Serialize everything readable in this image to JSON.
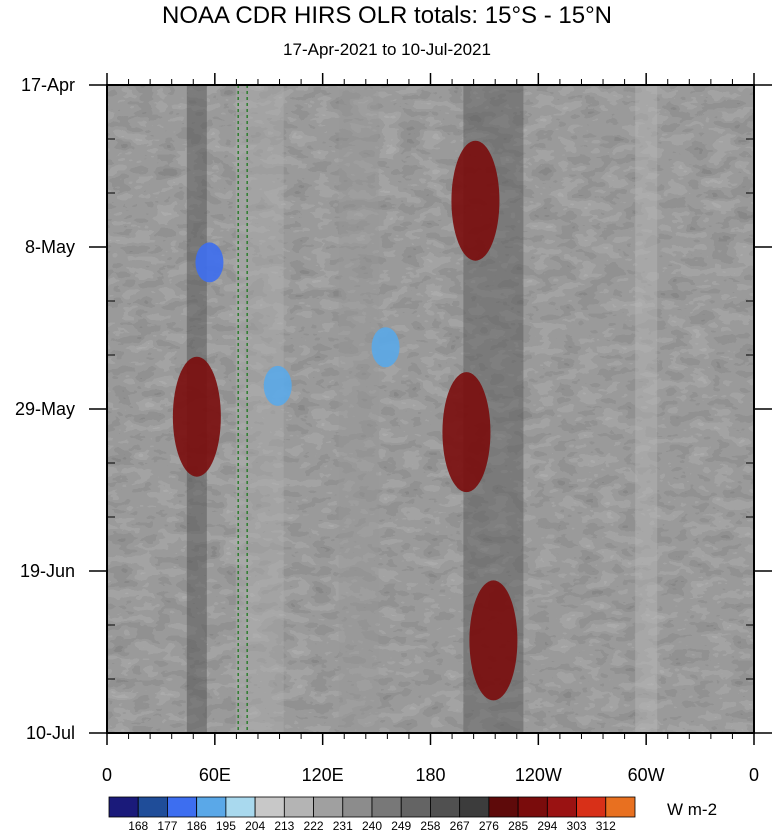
{
  "chart_data": {
    "type": "heatmap",
    "title": "NOAA CDR HIRS OLR totals: 15°S - 15°N",
    "subtitle": "17-Apr-2021 to 10-Jul-2021",
    "x_ticks": [
      "0",
      "60E",
      "120E",
      "180",
      "120W",
      "60W",
      "0"
    ],
    "y_ticks": [
      "17-Apr",
      "8-May",
      "29-May",
      "19-Jun",
      "10-Jul"
    ],
    "x_range": [
      "0",
      "0"
    ],
    "y_range": [
      "17-Apr",
      "10-Jul"
    ],
    "units": "W m-2",
    "colorbar": {
      "levels": [
        "168",
        "177",
        "186",
        "195",
        "204",
        "213",
        "222",
        "231",
        "240",
        "249",
        "258",
        "267",
        "276",
        "285",
        "294",
        "303",
        "312"
      ],
      "colors": [
        "#1a1a7a",
        "#1f4d99",
        "#3d6ef0",
        "#5aa8e8",
        "#a9d9ee",
        "#c8c8c8",
        "#b4b4b4",
        "#a0a0a0",
        "#8c8c8c",
        "#787878",
        "#646464",
        "#505050",
        "#3c3c3c",
        "#5e0a0a",
        "#7a0c0c",
        "#9a1212",
        "#d83018",
        "#e87020"
      ]
    },
    "features": [
      {
        "label": "deep convection",
        "lon_deg": 57,
        "date": "10-May",
        "olr": 180
      },
      {
        "label": "convection",
        "lon_deg": 95,
        "date": "26-May",
        "olr": 190
      },
      {
        "label": "convection",
        "lon_deg": 155,
        "date": "21-May",
        "olr": 188
      },
      {
        "label": "dry region",
        "lon_deg": 50,
        "date": "30-May",
        "olr": 292
      },
      {
        "label": "dry region",
        "lon_deg": 205,
        "date": "2-May",
        "olr": 292
      },
      {
        "label": "dry region",
        "lon_deg": 200,
        "date": "1-Jun",
        "olr": 292
      },
      {
        "label": "dry region",
        "lon_deg": 215,
        "date": "28-Jun",
        "olr": 290
      }
    ],
    "reference_lines_lon_deg": [
      73,
      78
    ],
    "grid": "off",
    "legend": "bottom"
  }
}
